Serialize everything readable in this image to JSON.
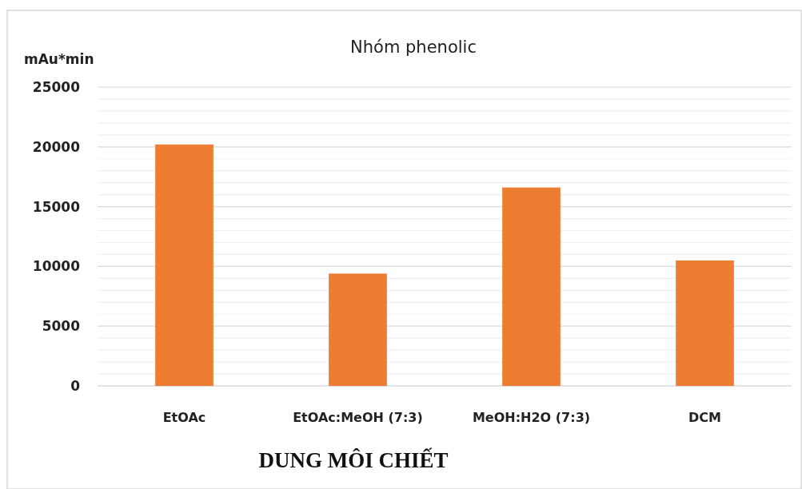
{
  "chart_data": {
    "type": "bar",
    "title": "Nhóm phenolic",
    "ylabel": "mAu*min",
    "xlabel": "DUNG MÔI CHIẾT",
    "categories": [
      "EtOAc",
      "EtOAc:MeOH (7:3)",
      "MeOH:H2O (7:3)",
      "DCM"
    ],
    "values": [
      20200,
      9400,
      16600,
      10500
    ],
    "color": "#ed7d31",
    "ylim": [
      0,
      25000
    ],
    "yticks": [
      0,
      {
        "value": 1000,
        "label": null
      },
      {
        "value": 2000,
        "label": null
      },
      {
        "value": 3000,
        "label": null
      },
      {
        "value": 4000,
        "label": null
      },
      5000,
      {
        "value": 6000,
        "label": null
      },
      {
        "value": 7000,
        "label": null
      },
      {
        "value": 8000,
        "label": null
      },
      {
        "value": 9000,
        "label": null
      },
      10000,
      {
        "value": 11000,
        "label": null
      },
      {
        "value": 12000,
        "label": null
      },
      {
        "value": 13000,
        "label": null
      },
      {
        "value": 14000,
        "label": null
      },
      15000,
      {
        "value": 16000,
        "label": null
      },
      {
        "value": 17000,
        "label": null
      },
      {
        "value": 18000,
        "label": null
      },
      {
        "value": 19000,
        "label": null
      },
      20000,
      {
        "value": 21000,
        "label": null
      },
      {
        "value": 22000,
        "label": null
      },
      {
        "value": 23000,
        "label": null
      },
      {
        "value": 24000,
        "label": null
      },
      25000
    ],
    "grid": true
  }
}
